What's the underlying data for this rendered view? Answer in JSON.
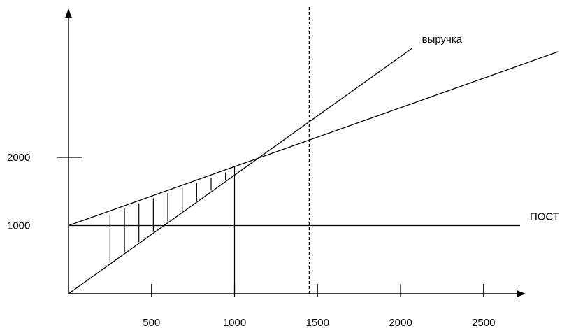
{
  "chart_data": {
    "type": "line",
    "title": "",
    "xlabel": "",
    "ylabel": "",
    "x_ticks": [
      500,
      1000,
      1500,
      2000,
      2500
    ],
    "x_tick_labels": [
      "500",
      "1000",
      "1500",
      "2000",
      "2500"
    ],
    "y_ticks": [
      1000,
      2000
    ],
    "y_tick_labels": [
      "1000",
      "2000"
    ],
    "series": [
      {
        "name": "выручка",
        "points": [
          [
            0,
            0
          ],
          [
            2070,
            3600
          ]
        ]
      },
      {
        "name": "",
        "points": [
          [
            0,
            1000
          ],
          [
            2950,
            3550
          ]
        ]
      },
      {
        "name": "ПОСТ",
        "points": [
          [
            0,
            1000
          ],
          [
            2720,
            1000
          ]
        ]
      }
    ],
    "break_even": {
      "x": 1450,
      "y": 2050,
      "style": "dashed"
    },
    "marker_x": 1000,
    "hatched_region": {
      "x_from": 250,
      "x_to": 1000,
      "x_step": 87
    },
    "colors": {
      "line": "#000000",
      "background": "#ffffff"
    }
  }
}
